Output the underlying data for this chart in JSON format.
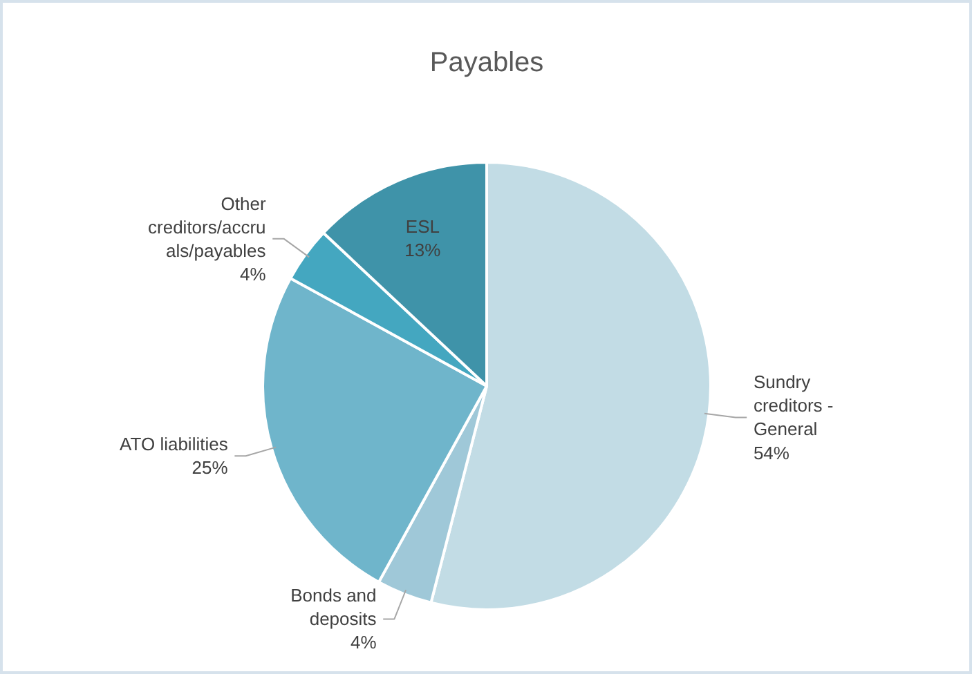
{
  "chart_data": {
    "type": "pie",
    "title": "Payables",
    "categories": [
      "Sundry creditors - General",
      "Bonds and deposits",
      "ATO liabilities",
      "Other creditors/accruals/payables",
      "ESL"
    ],
    "values": [
      54,
      4,
      25,
      4,
      13
    ],
    "value_labels": [
      "54%",
      "4%",
      "25%",
      "4%",
      "13%"
    ],
    "colors": [
      "#c2dce5",
      "#9fc8d8",
      "#6fb5cb",
      "#44a7c0",
      "#3f93a9"
    ]
  }
}
